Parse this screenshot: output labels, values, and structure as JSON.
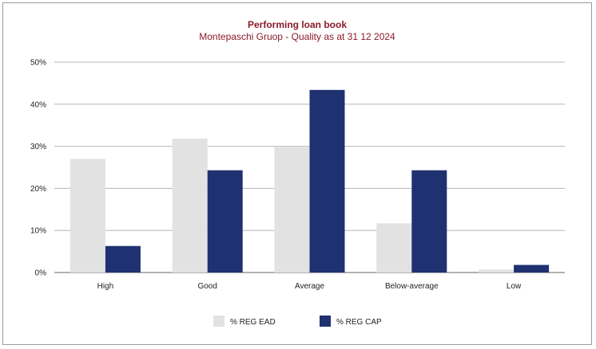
{
  "chart_data": {
    "type": "bar",
    "title": "Performing loan book",
    "subtitle": "Montepaschi Gruop - Quality as at 31 12 2024",
    "categories": [
      "High",
      "Good",
      "Average",
      "Below-average",
      "Low"
    ],
    "series": [
      {
        "name": "% REG EAD",
        "color": "#e2e2e2",
        "values": [
          27,
          31.8,
          29.8,
          11.7,
          0.7
        ]
      },
      {
        "name": "% REG CAP",
        "color": "#1f3170",
        "values": [
          6.3,
          24.3,
          43.4,
          24.3,
          1.8
        ]
      }
    ],
    "ylim": [
      0,
      50
    ],
    "yticks": [
      0,
      10,
      20,
      30,
      40,
      50
    ],
    "ytick_labels": [
      "0%",
      "10%",
      "20%",
      "30%",
      "40%",
      "50%"
    ],
    "grid": true,
    "legend_position": "bottom-center"
  }
}
